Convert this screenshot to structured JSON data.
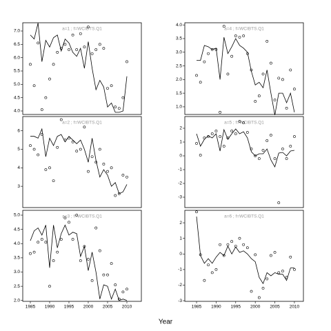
{
  "xlabel": "Year",
  "chart_data": [
    {
      "type": "line-scatter",
      "title": "a=1 ; f=WCIBTS.Q1",
      "x": [
        1985,
        1986,
        1987,
        1988,
        1989,
        1990,
        1991,
        1992,
        1993,
        1994,
        1995,
        1996,
        1997,
        1998,
        1999,
        2000,
        2001,
        2002,
        2003,
        2004,
        2005,
        2006,
        2007,
        2008,
        2009,
        2010
      ],
      "xlim": [
        1983.04,
        2013.75
      ],
      "ylim": [
        3.87,
        7.31
      ],
      "yticks": [
        {
          "value": 4,
          "label": "4.0"
        },
        4.5,
        {
          "value": 5,
          "label": "5.0"
        },
        5.5,
        {
          "value": 6,
          "label": "6.0"
        },
        6.5,
        {
          "value": 7,
          "label": "7.0"
        }
      ],
      "series": [
        {
          "style": "line",
          "color": "#000000",
          "values": [
            6.85,
            6.7,
            7.3,
            5.85,
            6.65,
            6.4,
            6.75,
            6.85,
            6.25,
            6.7,
            6.55,
            6.2,
            6.05,
            6.35,
            5.6,
            6.6,
            5.6,
            4.8,
            5.15,
            4.9,
            4.15,
            4.3,
            3.95,
            3.95,
            4.0,
            5.3
          ]
        },
        {
          "style": "points",
          "color": "#000000",
          "values": [
            5.75,
            4.95,
            6.55,
            4.05,
            4.5,
            5.2,
            5.75,
            6.2,
            6.35,
            6.5,
            6.3,
            6.85,
            6.3,
            6.9,
            6.4,
            7.15,
            6.15,
            6.3,
            6.5,
            6.35,
            4.85,
            4.95,
            4.15,
            4.1,
            4.5,
            5.85
          ]
        }
      ]
    },
    {
      "type": "line-scatter",
      "title": "a=2 ; f=WCIBTS.Q1",
      "x": [
        1985,
        1986,
        1987,
        1988,
        1989,
        1990,
        1991,
        1992,
        1993,
        1994,
        1995,
        1996,
        1997,
        1998,
        1999,
        2000,
        2001,
        2002,
        2003,
        2004,
        2005,
        2006,
        2007,
        2008,
        2009,
        2010
      ],
      "xlim": [
        1983.04,
        2013.75
      ],
      "ylim": [
        1.85,
        6.77
      ],
      "yticks": [
        3,
        4,
        5,
        6
      ],
      "series": [
        {
          "style": "line",
          "color": "#000000",
          "values": [
            5.7,
            5.7,
            5.6,
            6.1,
            4.6,
            5.6,
            5.2,
            5.7,
            5.8,
            5.4,
            5.7,
            5.5,
            5.3,
            5.5,
            5.0,
            4.3,
            5.6,
            4.4,
            3.5,
            3.9,
            3.6,
            3.0,
            3.2,
            2.6,
            2.7,
            3.1
          ]
        },
        {
          "style": "points",
          "color": "#000000",
          "values": [
            5.2,
            5.0,
            4.7,
            5.8,
            3.9,
            4.0,
            3.3,
            5.1,
            6.6,
            5.5,
            5.6,
            5.4,
            4.9,
            5.0,
            6.2,
            3.8,
            4.6,
            4.3,
            5.0,
            4.2,
            3.8,
            4.0,
            2.5,
            2.6,
            3.6,
            3.5
          ]
        }
      ]
    },
    {
      "type": "line-scatter",
      "title": "a=3 ; f=WCIBTS.Q1",
      "x": [
        1985,
        1986,
        1987,
        1988,
        1989,
        1990,
        1991,
        1992,
        1993,
        1994,
        1995,
        1996,
        1997,
        1998,
        1999,
        2000,
        2001,
        2002,
        2003,
        2004,
        2005,
        2006,
        2007,
        2008,
        2009,
        2010
      ],
      "xlim": [
        1983.04,
        2013.75
      ],
      "ylim": [
        1.97,
        5.17
      ],
      "xticks": [
        1985,
        1990,
        1995,
        2000,
        2005,
        2010
      ],
      "yticks": [
        {
          "value": 2,
          "label": "2.0"
        },
        2.5,
        {
          "value": 3,
          "label": "3.0"
        },
        3.5,
        {
          "value": 4,
          "label": "4.0"
        },
        4.5,
        {
          "value": 5,
          "label": "5.0"
        }
      ],
      "series": [
        {
          "style": "line",
          "color": "#000000",
          "values": [
            4.1,
            4.45,
            4.55,
            4.3,
            4.65,
            3.15,
            4.65,
            3.85,
            4.35,
            4.65,
            4.3,
            4.4,
            4.35,
            3.55,
            3.9,
            3.05,
            3.7,
            3.0,
            2.05,
            2.55,
            2.5,
            2.05,
            2.4,
            2.0,
            2.05,
            2.0
          ]
        },
        {
          "style": "points",
          "color": "#000000",
          "values": [
            3.65,
            3.7,
            4.05,
            4.15,
            4.05,
            2.5,
            3.4,
            3.7,
            4.15,
            4.9,
            4.75,
            4.15,
            5.0,
            3.4,
            3.9,
            3.45,
            2.7,
            4.55,
            3.75,
            2.9,
            2.9,
            3.3,
            2.55,
            2.05,
            2.3,
            2.4
          ]
        }
      ]
    },
    {
      "type": "line-scatter",
      "title": "a=4 ; f=WCIBTS.Q1",
      "x": [
        1985,
        1986,
        1987,
        1988,
        1989,
        1990,
        1991,
        1992,
        1993,
        1994,
        1995,
        1996,
        1997,
        1998,
        1999,
        2000,
        2001,
        2002,
        2003,
        2004,
        2005,
        2006,
        2007,
        2008,
        2009,
        2010
      ],
      "xlim": [
        1982.0,
        2012.3
      ],
      "ylim": [
        0.72,
        4.08
      ],
      "yticks": [
        {
          "value": 1,
          "label": "1.0"
        },
        1.5,
        {
          "value": 2,
          "label": "2.0"
        },
        2.5,
        {
          "value": 3,
          "label": "3.0"
        },
        3.5,
        {
          "value": 4,
          "label": "4.0"
        }
      ],
      "series": [
        {
          "style": "line",
          "color": "#000000",
          "values": [
            2.7,
            2.7,
            3.25,
            3.2,
            3.1,
            3.15,
            2.0,
            3.55,
            2.95,
            3.2,
            3.5,
            3.25,
            3.15,
            3.0,
            2.3,
            1.8,
            1.9,
            1.7,
            2.35,
            1.5,
            0.7,
            1.5,
            1.5,
            1.15,
            1.5,
            0.8
          ]
        },
        {
          "style": "points",
          "color": "#000000",
          "values": [
            2.15,
            1.9,
            2.65,
            2.95,
            3.1,
            3.1,
            0.8,
            3.95,
            2.2,
            2.85,
            3.6,
            3.55,
            3.6,
            2.95,
            2.35,
            1.2,
            1.4,
            2.2,
            3.4,
            2.6,
            1.25,
            2.05,
            2.0,
            0.95,
            2.35,
            1.65
          ]
        }
      ]
    },
    {
      "type": "line-scatter",
      "title": "a=5 ; f=WCIBTS.Q1",
      "x": [
        1985,
        1986,
        1987,
        1988,
        1989,
        1990,
        1991,
        1992,
        1993,
        1994,
        1995,
        1996,
        1997,
        1998,
        1999,
        2000,
        2001,
        2002,
        2003,
        2004,
        2005,
        2006,
        2007,
        2008,
        2009,
        2010
      ],
      "xlim": [
        1982.0,
        2012.3
      ],
      "ylim": [
        -3.75,
        2.85
      ],
      "yticks": [
        -3,
        -2,
        -1,
        0,
        1,
        2
      ],
      "series": [
        {
          "style": "line",
          "color": "#000000",
          "values": [
            1.6,
            0.7,
            1.2,
            1.45,
            1.3,
            1.6,
            0.35,
            1.9,
            1.2,
            1.6,
            1.95,
            1.6,
            1.75,
            1.3,
            0.3,
            0.0,
            0.15,
            0.15,
            0.5,
            -0.3,
            -0.8,
            0.2,
            0.25,
            0.0,
            0.35,
            0.4
          ]
        },
        {
          "style": "points",
          "color": "#000000",
          "values": [
            0.9,
            0.05,
            1.3,
            1.4,
            1.6,
            1.8,
            1.4,
            0.7,
            1.3,
            1.8,
            1.6,
            2.5,
            2.4,
            1.7,
            0.5,
            0.0,
            -0.2,
            0.4,
            1.1,
            1.5,
            -0.2,
            -3.4,
            0.5,
            -0.2,
            0.7,
            1.4
          ]
        }
      ]
    },
    {
      "type": "line-scatter",
      "title": "a=6 ; f=WCIBTS.Q1",
      "x": [
        1985,
        1986,
        1987,
        1988,
        1989,
        1990,
        1991,
        1992,
        1993,
        1994,
        1995,
        1996,
        1997,
        1998,
        1999,
        2000,
        2001,
        2002,
        2003,
        2004,
        2005,
        2006,
        2007,
        2008,
        2009,
        2010
      ],
      "xlim": [
        1982.0,
        2012.3
      ],
      "ylim": [
        -3.04,
        2.8
      ],
      "xticks": [
        1985,
        1990,
        1995,
        2000,
        2005,
        2010
      ],
      "yticks": [
        -3,
        -2,
        -1,
        0,
        1,
        2
      ],
      "series": [
        {
          "style": "line",
          "color": "#000000",
          "values": [
            2.4,
            -0.1,
            -0.6,
            -0.3,
            -0.6,
            -0.2,
            0.1,
            -0.1,
            0.5,
            0.0,
            0.45,
            0.1,
            0.2,
            0.0,
            -0.3,
            -0.5,
            -1.5,
            -1.9,
            -1.2,
            -1.4,
            -1.2,
            -1.3,
            -1.3,
            -1.7,
            -0.9,
            -0.9
          ]
        },
        {
          "style": "points",
          "color": "#000000",
          "values": [
            2.7,
            -0.05,
            -1.7,
            -0.7,
            -1.2,
            -1.0,
            0.6,
            -0.1,
            0.6,
            0.8,
            0.5,
            1.0,
            0.6,
            0.4,
            -2.4,
            -0.05,
            -2.8,
            -2.2,
            -1.6,
            -0.1,
            0.1,
            -1.2,
            -1.1,
            -1.5,
            -0.2,
            -1.0
          ]
        }
      ]
    }
  ]
}
